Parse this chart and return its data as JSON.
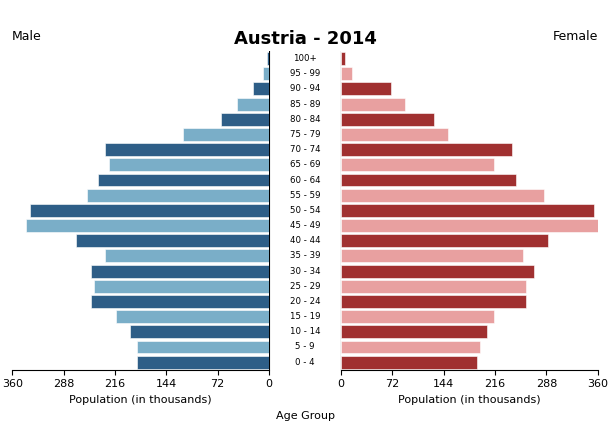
{
  "title": "Austria - 2014",
  "male_label": "Male",
  "female_label": "Female",
  "xlabel_left": "Population (in thousands)",
  "xlabel_center": "Age Group",
  "xlabel_right": "Population (in thousands)",
  "age_groups": [
    "100+",
    "95 - 99",
    "90 - 94",
    "85 - 89",
    "80 - 84",
    "75 - 79",
    "70 - 74",
    "65 - 69",
    "60 - 64",
    "55 - 59",
    "50 - 54",
    "45 - 49",
    "40 - 44",
    "35 - 39",
    "30 - 34",
    "25 - 29",
    "20 - 24",
    "15 - 19",
    "10 - 14",
    "5 - 9",
    "0 - 4"
  ],
  "male_values": [
    3,
    8,
    22,
    45,
    68,
    120,
    230,
    225,
    240,
    255,
    335,
    340,
    270,
    230,
    250,
    245,
    250,
    215,
    195,
    185,
    185
  ],
  "female_values": [
    5,
    15,
    70,
    90,
    130,
    150,
    240,
    215,
    245,
    285,
    355,
    360,
    290,
    255,
    270,
    260,
    260,
    215,
    205,
    195,
    190
  ],
  "male_colors_dark": "#2e5e87",
  "male_colors_light": "#7aaec8",
  "female_colors_dark": "#a03030",
  "female_colors_light": "#e8a0a0",
  "xlim": 360,
  "background_color": "#ffffff"
}
